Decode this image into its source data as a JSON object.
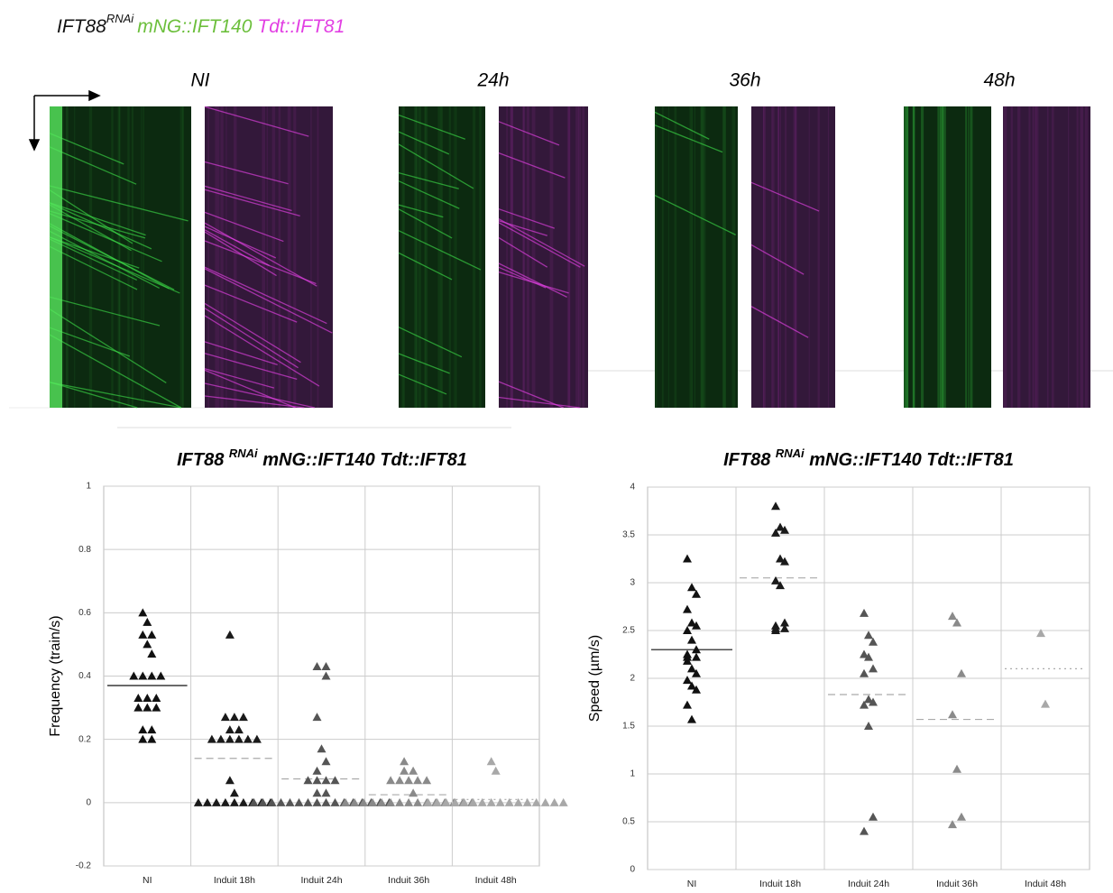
{
  "header": {
    "parts": [
      "IFT88",
      "RNAi",
      "mNG::IFT140",
      "Tdt::IFT81"
    ],
    "colors": [
      "#111111",
      "#111111",
      "#6cbf3c",
      "#e23fe3"
    ]
  },
  "kymographs": {
    "labels": [
      "NI",
      "24h",
      "36h",
      "48h"
    ]
  },
  "chart_data": [
    {
      "type": "strip",
      "title": [
        "IFT88 ",
        "RNAi",
        " mNG::IFT140 Tdt::IFT81"
      ],
      "ylabel": "Frequency (train/s)",
      "categories": [
        "NI",
        "Induit 18h",
        "Induit 24h",
        "Induit 36h",
        "Induit 48h"
      ],
      "values": [
        [
          0.6,
          0.57,
          0.53,
          0.53,
          0.5,
          0.47,
          0.4,
          0.4,
          0.4,
          0.4,
          0.33,
          0.33,
          0.33,
          0.3,
          0.3,
          0.3,
          0.23,
          0.23,
          0.2,
          0.2
        ],
        [
          0.53,
          0.27,
          0.27,
          0.27,
          0.23,
          0.23,
          0.2,
          0.2,
          0.2,
          0.2,
          0.2,
          0.2,
          0.07,
          0.03,
          0,
          0,
          0,
          0,
          0,
          0,
          0,
          0,
          0
        ],
        [
          0.43,
          0.43,
          0.4,
          0.27,
          0.17,
          0.13,
          0.1,
          0.07,
          0.07,
          0.07,
          0.07,
          0.03,
          0.03,
          0,
          0,
          0,
          0,
          0,
          0,
          0,
          0,
          0,
          0,
          0,
          0,
          0,
          0,
          0,
          0
        ],
        [
          0.13,
          0.1,
          0.1,
          0.07,
          0.07,
          0.07,
          0.07,
          0.07,
          0.03,
          0,
          0,
          0,
          0,
          0,
          0,
          0,
          0,
          0,
          0,
          0,
          0,
          0,
          0,
          0
        ],
        [
          0.13,
          0.1,
          0,
          0,
          0,
          0,
          0,
          0,
          0,
          0,
          0,
          0,
          0,
          0,
          0,
          0,
          0,
          0
        ]
      ],
      "means": [
        0.37,
        0.14,
        0.075,
        0.025,
        0.01
      ],
      "colors": [
        "#111111",
        "#1a1a1a",
        "#555555",
        "#8a8a8a",
        "#a8a8a8"
      ],
      "ylim": [
        -0.2,
        1
      ],
      "yticks": [
        -0.2,
        0,
        0.2,
        0.4,
        0.6,
        0.8,
        1
      ],
      "grid": true
    },
    {
      "type": "strip",
      "title": [
        "IFT88 ",
        "RNAi",
        " mNG::IFT140 Tdt::IFT81"
      ],
      "ylabel": "Speed (µm/s)",
      "categories": [
        "NI",
        "Induit 18h",
        "Induit 24h",
        "Induit 36h",
        "Induit 48h"
      ],
      "values": [
        [
          3.25,
          2.95,
          2.88,
          2.72,
          2.58,
          2.55,
          2.5,
          2.4,
          2.3,
          2.25,
          2.22,
          2.22,
          2.18,
          2.1,
          2.05,
          1.98,
          1.92,
          1.88,
          1.72,
          1.57
        ],
        [
          3.8,
          3.58,
          3.55,
          3.52,
          3.25,
          3.22,
          3.02,
          2.97,
          2.58,
          2.55,
          2.52,
          2.52,
          2.5
        ],
        [
          2.68,
          2.45,
          2.38,
          2.25,
          2.22,
          2.1,
          2.05,
          1.78,
          1.75,
          1.72,
          1.5,
          0.55,
          0.4
        ],
        [
          2.65,
          2.58,
          2.05,
          1.62,
          1.05,
          0.55,
          0.47
        ],
        [
          2.47,
          1.73
        ]
      ],
      "means": [
        2.3,
        3.05,
        1.83,
        1.57,
        2.1
      ],
      "colors": [
        "#111111",
        "#1a1a1a",
        "#555555",
        "#8a8a8a",
        "#a8a8a8"
      ],
      "ylim": [
        0,
        4
      ],
      "yticks": [
        0,
        0.5,
        1,
        1.5,
        2,
        2.5,
        3,
        3.5,
        4
      ],
      "grid": true
    }
  ]
}
